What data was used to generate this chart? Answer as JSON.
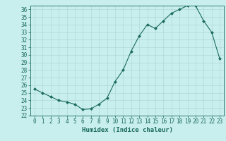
{
  "x": [
    0,
    1,
    2,
    3,
    4,
    5,
    6,
    7,
    8,
    9,
    10,
    11,
    12,
    13,
    14,
    15,
    16,
    17,
    18,
    19,
    20,
    21,
    22,
    23
  ],
  "y": [
    25.5,
    25.0,
    24.5,
    24.0,
    23.8,
    23.5,
    22.8,
    22.9,
    23.5,
    24.3,
    26.5,
    28.0,
    30.5,
    32.5,
    34.0,
    33.5,
    34.5,
    35.5,
    36.0,
    36.5,
    36.5,
    34.5,
    33.0,
    29.5
  ],
  "line_color": "#1a6b5a",
  "marker": "D",
  "marker_size": 2.0,
  "bg_color": "#c8eeed",
  "grid_color": "#aad4d0",
  "tick_color": "#1a6b5a",
  "xlabel": "Humidex (Indice chaleur)",
  "ylim": [
    22,
    36.5
  ],
  "xlim": [
    -0.5,
    23.5
  ],
  "yticks": [
    22,
    23,
    24,
    25,
    26,
    27,
    28,
    29,
    30,
    31,
    32,
    33,
    34,
    35,
    36
  ],
  "xticks": [
    0,
    1,
    2,
    3,
    4,
    5,
    6,
    7,
    8,
    9,
    10,
    11,
    12,
    13,
    14,
    15,
    16,
    17,
    18,
    19,
    20,
    21,
    22,
    23
  ],
  "xlabel_fontsize": 6.5,
  "tick_fontsize": 5.5,
  "linewidth": 0.8
}
